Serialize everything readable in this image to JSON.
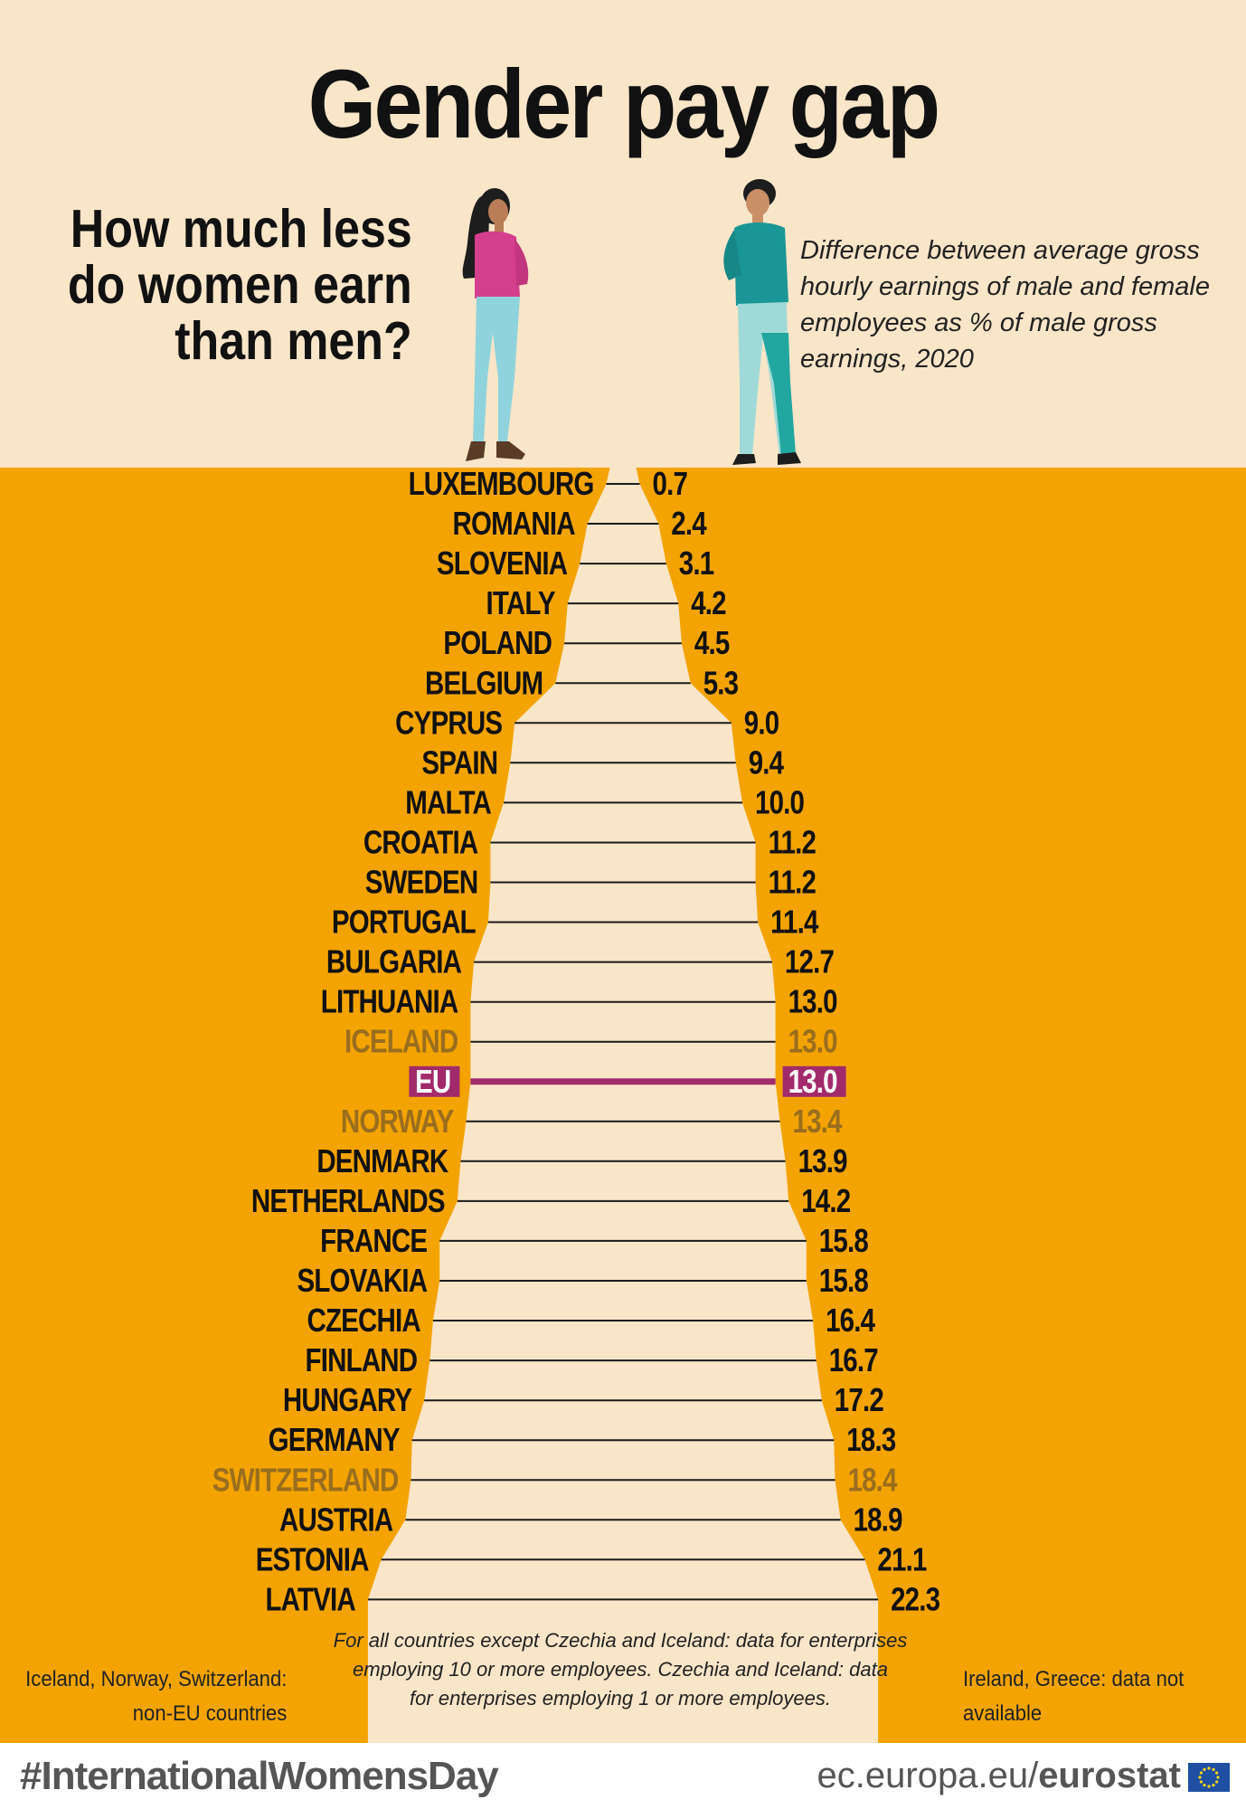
{
  "title": "Gender pay gap",
  "question": [
    "How much less",
    "do women earn",
    "than men?"
  ],
  "description": [
    "Difference between average gross",
    "hourly earnings of male and female",
    "employees as % of male gross",
    "earnings, 2020"
  ],
  "colors": {
    "cream": "#f9e5c8",
    "orange": "#f3a400",
    "eu_magenta": "#a12a6b",
    "non_eu_text": "#9a6d1f",
    "text": "#111111"
  },
  "chart_data": {
    "type": "bar",
    "unit": "%",
    "orientation": "symmetric-horizontal",
    "categories": [
      "LUXEMBOURG",
      "ROMANIA",
      "SLOVENIA",
      "ITALY",
      "POLAND",
      "BELGIUM",
      "CYPRUS",
      "SPAIN",
      "MALTA",
      "CROATIA",
      "SWEDEN",
      "PORTUGAL",
      "BULGARIA",
      "LITHUANIA",
      "ICELAND",
      "EU",
      "NORWAY",
      "DENMARK",
      "NETHERLANDS",
      "FRANCE",
      "SLOVAKIA",
      "CZECHIA",
      "FINLAND",
      "HUNGARY",
      "GERMANY",
      "SWITZERLAND",
      "AUSTRIA",
      "ESTONIA",
      "LATVIA"
    ],
    "values": [
      0.7,
      2.4,
      3.1,
      4.2,
      4.5,
      5.3,
      9.0,
      9.4,
      10.0,
      11.2,
      11.2,
      11.4,
      12.7,
      13.0,
      13.0,
      13.0,
      13.4,
      13.9,
      14.2,
      15.8,
      15.8,
      16.4,
      16.7,
      17.2,
      18.3,
      18.4,
      18.9,
      21.1,
      22.3
    ],
    "value_labels": [
      "0.7",
      "2.4",
      "3.1",
      "4.2",
      "4.5",
      "5.3",
      "9.0",
      "9.4",
      "10.0",
      "11.2",
      "11.2",
      "11.4",
      "12.7",
      "13.0",
      "13.0",
      "13.0",
      "13.4",
      "13.9",
      "14.2",
      "15.8",
      "15.8",
      "16.4",
      "16.7",
      "17.2",
      "18.3",
      "18.4",
      "18.9",
      "21.1",
      "22.3"
    ],
    "groups": [
      "eu",
      "eu",
      "eu",
      "eu",
      "eu",
      "eu",
      "eu",
      "eu",
      "eu",
      "eu",
      "eu",
      "eu",
      "eu",
      "eu",
      "non-eu",
      "aggregate",
      "non-eu",
      "eu",
      "eu",
      "eu",
      "eu",
      "eu",
      "eu",
      "eu",
      "eu",
      "non-eu",
      "eu",
      "eu",
      "eu"
    ],
    "xlim": [
      0,
      22.3
    ]
  },
  "notes": {
    "center": [
      "For all countries except Czechia and Iceland: data for enterprises",
      "employing 10 or more employees. Czechia and Iceland: data",
      "for enterprises employing 1 or more employees."
    ],
    "left": [
      "Iceland, Norway, Switzerland:",
      "non-EU countries"
    ],
    "right": [
      "Ireland, Greece: data not",
      "available"
    ]
  },
  "footer": {
    "hashtag": "#InternationalWomensDay",
    "site_prefix": "ec.europa.eu/",
    "site_brand": "eurostat"
  },
  "icons": [
    "woman-figure-icon",
    "man-figure-icon",
    "eu-flag-icon"
  ]
}
